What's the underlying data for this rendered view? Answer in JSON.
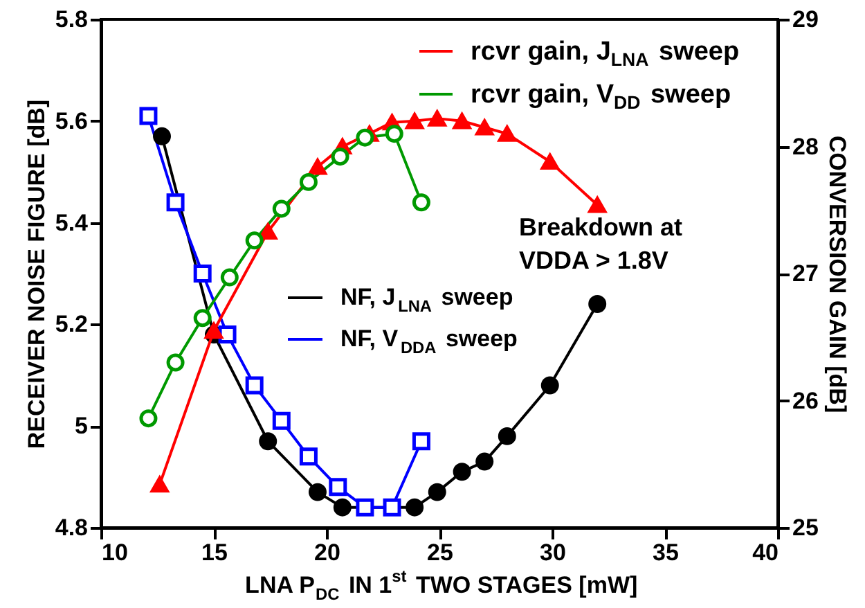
{
  "chart_data": {
    "type": "line",
    "xlabel": "LNA P$_{DC}$ IN 1$^{st}$ TWO STAGES [mW]",
    "ylabel": "RECEIVER NOISE FIGURE [dB]",
    "y2label": "CONVERSION GAIN [dB]",
    "xlim": [
      10,
      40
    ],
    "xticks": [
      10,
      15,
      20,
      25,
      30,
      35,
      40
    ],
    "ylim": [
      4.8,
      5.8
    ],
    "yticks": [
      4.8,
      5,
      5.2,
      5.4,
      5.6,
      5.8
    ],
    "y2lim": [
      25,
      29
    ],
    "y2ticks": [
      25,
      26,
      27,
      28,
      29
    ],
    "grid": false,
    "legend": "top right",
    "annotations": [
      "Breakdown at\nVDDA > 1.8V"
    ],
    "series": [
      {
        "name": "rcvr gain, J$_{LNA}$ sweep",
        "color": "#ff0000",
        "axis": "y2",
        "marker": "triangle",
        "x": [
          12.6,
          15.0,
          17.4,
          19.6,
          20.7,
          21.9,
          22.9,
          23.9,
          24.9,
          26.0,
          27.0,
          28.0,
          29.9,
          32.0
        ],
        "values": [
          25.34,
          26.55,
          27.33,
          27.84,
          28.0,
          28.1,
          28.19,
          28.2,
          28.22,
          28.2,
          28.15,
          28.1,
          27.88,
          27.54
        ]
      },
      {
        "name": "rcvr gain, V$_{DD}$ sweep",
        "color": "#009900",
        "axis": "y2",
        "marker": "circle",
        "x": [
          12.1,
          13.3,
          14.5,
          15.7,
          16.8,
          18.0,
          19.2,
          20.6,
          21.7,
          23.0,
          24.2
        ],
        "values": [
          25.86,
          26.3,
          26.65,
          26.97,
          27.26,
          27.51,
          27.72,
          27.92,
          28.07,
          28.1,
          27.56
        ]
      },
      {
        "name": "NF, J$_{LNA}$ sweep",
        "color": "#000000",
        "marker": "circle",
        "x": [
          12.7,
          15.0,
          17.4,
          19.6,
          20.7,
          23.9,
          24.9,
          26.0,
          27.0,
          28.0,
          29.9,
          32.0
        ],
        "values": [
          5.57,
          5.18,
          4.97,
          4.87,
          4.84,
          4.84,
          4.87,
          4.91,
          4.93,
          4.98,
          5.08,
          5.24
        ]
      },
      {
        "name": "NF, V$_{DDA}$ sweep",
        "color": "#0000ff",
        "marker": "square",
        "x": [
          12.1,
          13.3,
          14.5,
          15.6,
          16.8,
          18.0,
          19.2,
          20.5,
          21.7,
          22.9,
          24.2
        ],
        "values": [
          5.61,
          5.44,
          5.3,
          5.18,
          5.08,
          5.01,
          4.94,
          4.88,
          4.84,
          4.84,
          4.97
        ]
      }
    ]
  }
}
